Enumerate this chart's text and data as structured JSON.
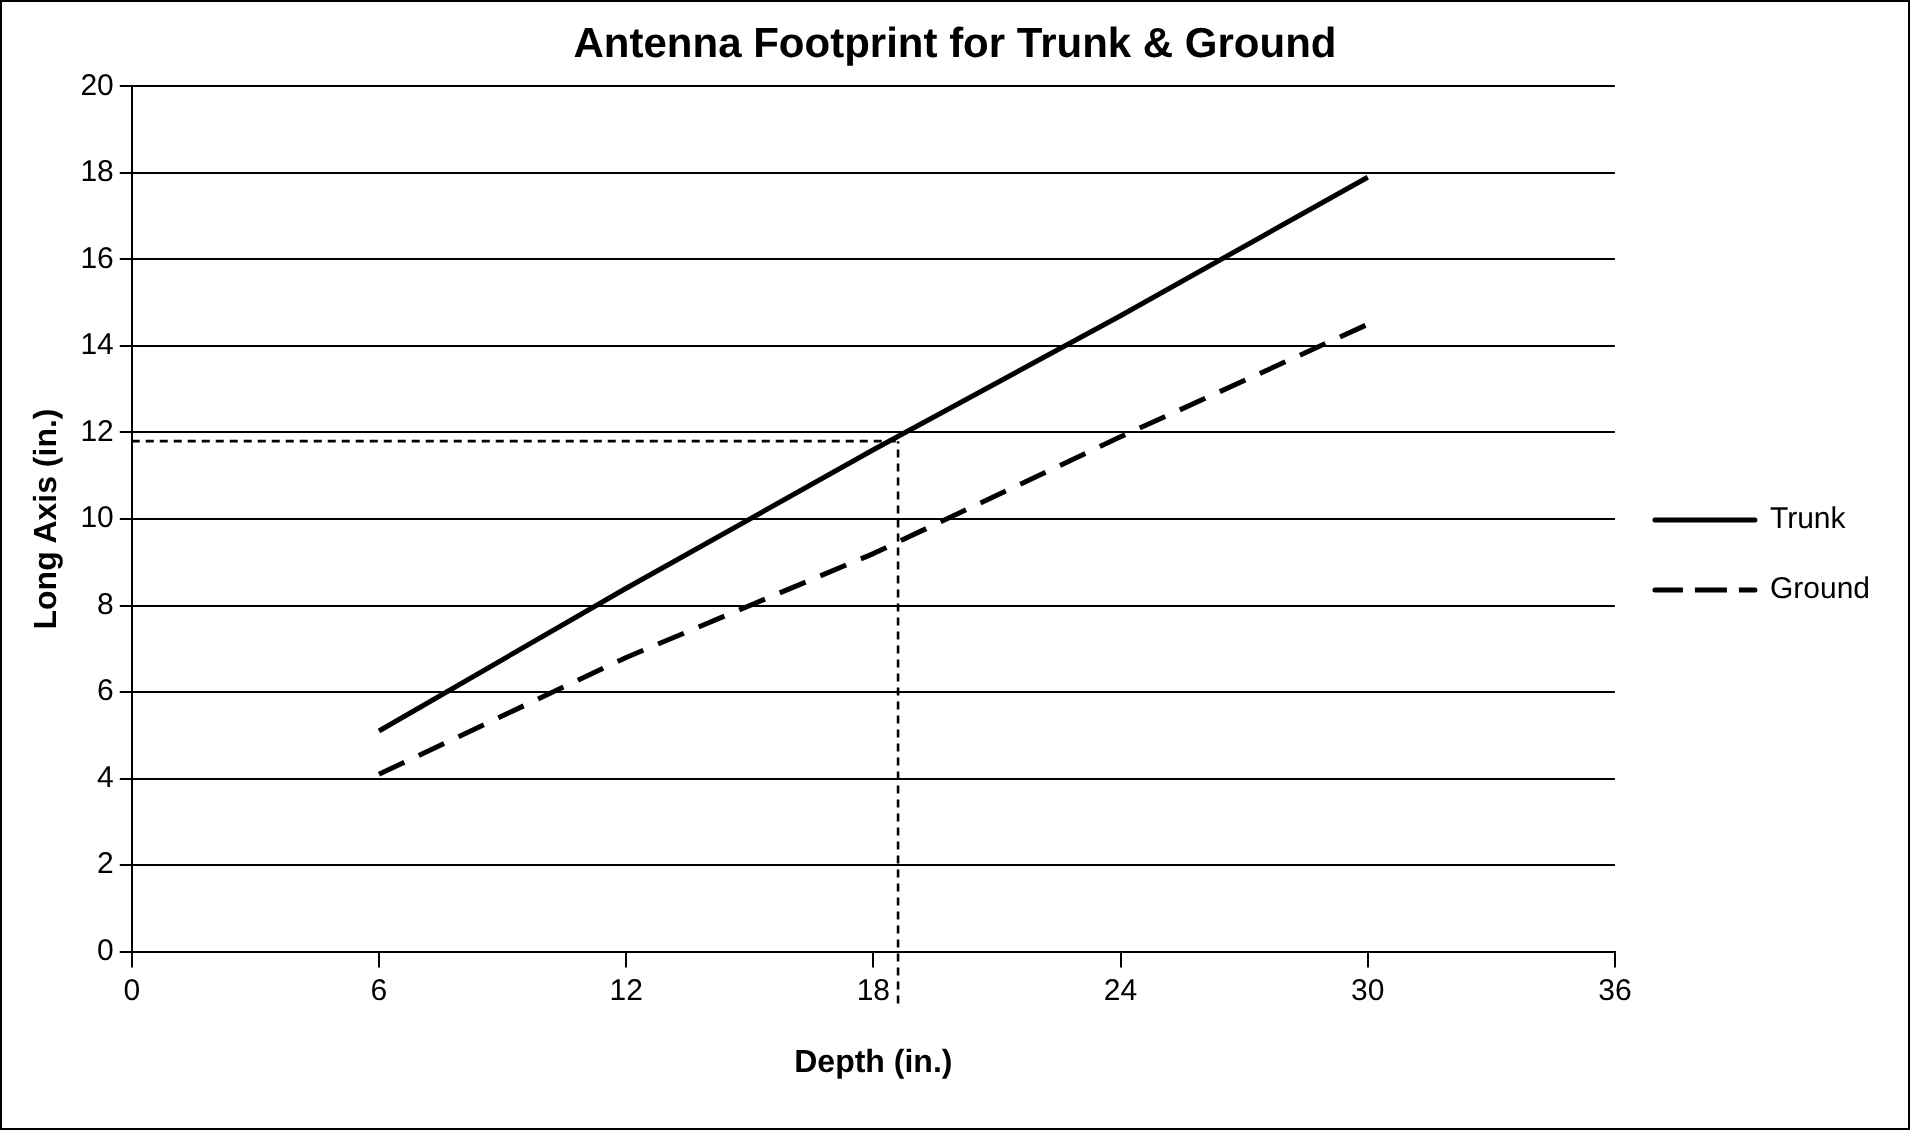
{
  "chart_data": {
    "type": "line",
    "title": "Antenna Footprint for Trunk & Ground",
    "xlabel": "Depth (in.)",
    "ylabel": "Long Axis (in.)",
    "x": [
      6,
      12,
      18,
      24,
      30
    ],
    "series": [
      {
        "name": "Trunk",
        "color": "#000000",
        "values": [
          5.1,
          8.4,
          11.6,
          14.7,
          17.9
        ],
        "line_style": "solid"
      },
      {
        "name": "Ground",
        "color": "#000000",
        "values": [
          4.1,
          6.8,
          9.2,
          11.9,
          14.5
        ],
        "line_style": "dashed"
      }
    ],
    "xlim": [
      0,
      36
    ],
    "xticks": [
      0,
      6,
      12,
      18,
      24,
      30,
      36
    ],
    "ylim": [
      0,
      20
    ],
    "yticks": [
      0,
      2,
      4,
      6,
      8,
      10,
      12,
      14,
      16,
      18,
      20
    ],
    "ref_lines": [
      {
        "axis": "x",
        "value": 18.6,
        "color": "#000000",
        "line_style": "dotted"
      },
      {
        "axis": "y",
        "value": 11.8,
        "color": "#000000",
        "line_style": "dotted"
      }
    ],
    "grid": "y",
    "legend": "right",
    "marker": "none"
  }
}
